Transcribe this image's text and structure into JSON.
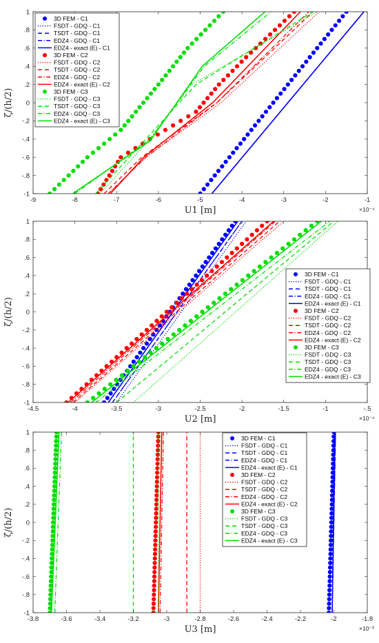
{
  "chart_data": [
    {
      "type": "line",
      "xlabel": "U1 [m]",
      "ylabel": "ζ/(h/2)",
      "x_exponent": "×10⁻⁴",
      "xlim": [
        -9,
        -1
      ],
      "ylim": [
        -1,
        1
      ],
      "xticks": [
        -9,
        -8,
        -7,
        -6,
        -5,
        -4,
        -3,
        -2,
        -1
      ],
      "yticks": [
        -1,
        -0.8,
        -0.6,
        -0.4,
        -0.2,
        0,
        0.2,
        0.4,
        0.6,
        0.8,
        1
      ],
      "legend_position": "top-left",
      "series": [
        {
          "name": "3D FEM - C1",
          "color": "#0000ff",
          "style": "dots",
          "points": [
            [
              -5.0,
              -1
            ],
            [
              -1.5,
              1
            ]
          ]
        },
        {
          "name": "FSDT - GDQ - C1",
          "color": "#0000ff",
          "style": "dotted",
          "points": [
            [
              -4.72,
              -1
            ],
            [
              -1.08,
              1
            ]
          ]
        },
        {
          "name": "TSDT - GDQ - C1",
          "color": "#0000ff",
          "style": "dashed",
          "points": [
            [
              -4.72,
              -1
            ],
            [
              -1.08,
              1
            ]
          ]
        },
        {
          "name": "EDZ4 - GDQ - C1",
          "color": "#0000ff",
          "style": "dashdot",
          "points": [
            [
              -4.72,
              -1
            ],
            [
              -1.08,
              1
            ]
          ]
        },
        {
          "name": "EDZ4 - exact (E) - C1",
          "color": "#0000ff",
          "style": "solid",
          "points": [
            [
              -4.72,
              -1
            ],
            [
              -1.08,
              1
            ]
          ]
        },
        {
          "name": "3D FEM - C2",
          "color": "#ff0000",
          "style": "dots",
          "points": [
            [
              -7.45,
              -1
            ],
            [
              -6.9,
              -0.6
            ],
            [
              -6.2,
              -0.4
            ],
            [
              -5.1,
              -0.1
            ],
            [
              -4.55,
              0.2
            ],
            [
              -3.9,
              0.5
            ],
            [
              -2.75,
              1
            ]
          ]
        },
        {
          "name": "FSDT - GDQ - C2",
          "color": "#ff0000",
          "style": "dotted",
          "points": [
            [
              -7.2,
              -1
            ],
            [
              -6.3,
              -0.6
            ],
            [
              -4.5,
              0
            ],
            [
              -2.15,
              1
            ]
          ]
        },
        {
          "name": "TSDT - GDQ - C2",
          "color": "#ff0000",
          "style": "dashed",
          "points": [
            [
              -7.3,
              -1
            ],
            [
              -6.4,
              -0.6
            ],
            [
              -4.6,
              0
            ],
            [
              -2.3,
              1
            ]
          ]
        },
        {
          "name": "EDZ4 - GDQ - C2",
          "color": "#ff0000",
          "style": "dashdot",
          "points": [
            [
              -7.2,
              -1
            ],
            [
              -6.3,
              -0.6
            ],
            [
              -4.6,
              0
            ],
            [
              -2.4,
              1
            ]
          ]
        },
        {
          "name": "EDZ4 - exact (E) - C2",
          "color": "#ff0000",
          "style": "solid",
          "points": [
            [
              -7.15,
              -1
            ],
            [
              -6.35,
              -0.6
            ],
            [
              -4.7,
              0
            ],
            [
              -2.6,
              1
            ]
          ]
        },
        {
          "name": "3D FEM - C3",
          "color": "#00dd00",
          "style": "dots",
          "points": [
            [
              -8.6,
              -1
            ],
            [
              -7.7,
              -0.6
            ],
            [
              -6.9,
              -0.3
            ],
            [
              -6.0,
              0.2
            ],
            [
              -5.3,
              0.6
            ],
            [
              -4.45,
              1
            ]
          ]
        },
        {
          "name": "FSDT - GDQ - C3",
          "color": "#00dd00",
          "style": "dotted",
          "points": [
            [
              -7.4,
              -1
            ],
            [
              -6.3,
              -0.45
            ],
            [
              -5.2,
              0.2
            ],
            [
              -2.2,
              1
            ]
          ]
        },
        {
          "name": "TSDT - GDQ - C3",
          "color": "#00dd00",
          "style": "dashed",
          "points": [
            [
              -7.5,
              -1
            ],
            [
              -6.3,
              -0.4
            ],
            [
              -5.1,
              0.2
            ],
            [
              -2.3,
              1
            ]
          ]
        },
        {
          "name": "EDZ4 - GDQ - C3",
          "color": "#00dd00",
          "style": "dashdot",
          "points": [
            [
              -8.0,
              -1
            ],
            [
              -6.2,
              -0.4
            ],
            [
              -4.9,
              0.4
            ],
            [
              -3.3,
              1
            ]
          ]
        },
        {
          "name": "EDZ4 - exact (E) - C3",
          "color": "#00dd00",
          "style": "solid",
          "points": [
            [
              -8.05,
              -1
            ],
            [
              -6.2,
              -0.42
            ],
            [
              -4.95,
              0.4
            ],
            [
              -3.45,
              1
            ]
          ]
        }
      ]
    },
    {
      "type": "line",
      "xlabel": "U2 [m]",
      "ylabel": "ζ/(h/2)",
      "x_exponent": "×10⁻⁴",
      "xlim": [
        -4.5,
        -0.5
      ],
      "ylim": [
        -1,
        1
      ],
      "xticks": [
        -4.5,
        -4,
        -3.5,
        -3,
        -2.5,
        -2,
        -1.5,
        -1,
        -0.5
      ],
      "yticks": [
        -1,
        -0.8,
        -0.6,
        -0.4,
        -0.2,
        0,
        0.2,
        0.4,
        0.6,
        0.8,
        1
      ],
      "legend_position": "right",
      "series": [
        {
          "name": "3D FEM - C1",
          "color": "#0000ff",
          "style": "dots",
          "points": [
            [
              -3.65,
              -1
            ],
            [
              -2.08,
              1
            ]
          ]
        },
        {
          "name": "FSDT - GDQ - C1",
          "color": "#0000ff",
          "style": "dotted",
          "points": [
            [
              -3.5,
              -1
            ],
            [
              -1.95,
              1
            ]
          ]
        },
        {
          "name": "TSDT - GDQ - C1",
          "color": "#0000ff",
          "style": "dashed",
          "points": [
            [
              -3.55,
              -1
            ],
            [
              -2.0,
              1
            ]
          ]
        },
        {
          "name": "EDZ4 - GDQ - C1",
          "color": "#0000ff",
          "style": "dashdot",
          "points": [
            [
              -3.55,
              -1
            ],
            [
              -2.0,
              1
            ]
          ]
        },
        {
          "name": "EDZ4 - exact (E) - C1",
          "color": "#0000ff",
          "style": "solid",
          "points": [
            [
              -3.6,
              -1
            ],
            [
              -2.05,
              1
            ]
          ]
        },
        {
          "name": "3D FEM - C2",
          "color": "#ff0000",
          "style": "dots",
          "points": [
            [
              -4.1,
              -1
            ],
            [
              -1.7,
              1
            ]
          ]
        },
        {
          "name": "FSDT - GDQ - C2",
          "color": "#ff0000",
          "style": "dotted",
          "points": [
            [
              -4.0,
              -1
            ],
            [
              -1.5,
              1
            ]
          ]
        },
        {
          "name": "TSDT - GDQ - C2",
          "color": "#ff0000",
          "style": "dashed",
          "points": [
            [
              -4.02,
              -1
            ],
            [
              -1.55,
              1
            ]
          ]
        },
        {
          "name": "EDZ4 - GDQ - C2",
          "color": "#ff0000",
          "style": "dashdot",
          "points": [
            [
              -4.05,
              -1
            ],
            [
              -1.6,
              1
            ]
          ]
        },
        {
          "name": "EDZ4 - exact (E) - C2",
          "color": "#ff0000",
          "style": "solid",
          "points": [
            [
              -4.08,
              -1
            ],
            [
              -1.62,
              1
            ]
          ]
        },
        {
          "name": "3D FEM - C3",
          "color": "#00dd00",
          "style": "dots",
          "points": [
            [
              -3.85,
              -1
            ],
            [
              -1.1,
              1
            ]
          ]
        },
        {
          "name": "FSDT - GDQ - C3",
          "color": "#00dd00",
          "style": "dotted",
          "points": [
            [
              -3.3,
              -1
            ],
            [
              -0.85,
              1
            ]
          ]
        },
        {
          "name": "TSDT - GDQ - C3",
          "color": "#00dd00",
          "style": "dashed",
          "points": [
            [
              -3.5,
              -1
            ],
            [
              -0.9,
              1
            ]
          ]
        },
        {
          "name": "EDZ4 - GDQ - C3",
          "color": "#00dd00",
          "style": "dashdot",
          "points": [
            [
              -3.75,
              -1
            ],
            [
              -0.95,
              1
            ]
          ]
        },
        {
          "name": "EDZ4 - exact (E) - C3",
          "color": "#00dd00",
          "style": "solid",
          "points": [
            [
              -3.8,
              -1
            ],
            [
              -1.05,
              1
            ]
          ]
        }
      ]
    },
    {
      "type": "line",
      "xlabel": "U3 [m]",
      "ylabel": "ζ/(h/2)",
      "x_exponent": "×10⁻³",
      "xlim": [
        -3.8,
        -1.8
      ],
      "ylim": [
        -1,
        1
      ],
      "xticks": [
        -3.8,
        -3.6,
        -3.4,
        -3.2,
        -3,
        -2.8,
        -2.6,
        -2.4,
        -2.2,
        -2,
        -1.8
      ],
      "yticks": [
        -1,
        -0.8,
        -0.6,
        -0.4,
        -0.2,
        0,
        0.2,
        0.4,
        0.6,
        0.8,
        1
      ],
      "legend_position": "top-right",
      "series": [
        {
          "name": "3D FEM - C1",
          "color": "#0000ff",
          "style": "dots",
          "points": [
            [
              -2.03,
              -1
            ],
            [
              -2.0,
              1
            ]
          ]
        },
        {
          "name": "FSDT - GDQ - C1",
          "color": "#0000ff",
          "style": "dotted",
          "points": [
            [
              -2.01,
              -1
            ],
            [
              -1.99,
              1
            ]
          ]
        },
        {
          "name": "TSDT - GDQ - C1",
          "color": "#0000ff",
          "style": "dashed",
          "points": [
            [
              -2.01,
              -1
            ],
            [
              -1.99,
              1
            ]
          ]
        },
        {
          "name": "EDZ4 - GDQ - C1",
          "color": "#0000ff",
          "style": "dashdot",
          "points": [
            [
              -2.01,
              -1
            ],
            [
              -1.99,
              1
            ]
          ]
        },
        {
          "name": "EDZ4 - exact (E) - C1",
          "color": "#0000ff",
          "style": "solid",
          "points": [
            [
              -2.01,
              -1
            ],
            [
              -1.995,
              1
            ]
          ]
        },
        {
          "name": "3D FEM - C2",
          "color": "#ff0000",
          "style": "dots",
          "points": [
            [
              -3.08,
              -1
            ],
            [
              -3.05,
              1
            ]
          ]
        },
        {
          "name": "FSDT - GDQ - C2",
          "color": "#ff0000",
          "style": "dotted",
          "points": [
            [
              -2.8,
              -1
            ],
            [
              -2.8,
              1
            ]
          ]
        },
        {
          "name": "TSDT - GDQ - C2",
          "color": "#ff0000",
          "style": "dashed",
          "points": [
            [
              -2.88,
              -1
            ],
            [
              -2.88,
              1
            ]
          ]
        },
        {
          "name": "EDZ4 - GDQ - C2",
          "color": "#ff0000",
          "style": "dashdot",
          "points": [
            [
              -3.04,
              -1
            ],
            [
              -3.02,
              1
            ]
          ]
        },
        {
          "name": "EDZ4 - exact (E) - C2",
          "color": "#ff0000",
          "style": "solid",
          "points": [
            [
              -3.05,
              -1
            ],
            [
              -3.03,
              1
            ]
          ]
        },
        {
          "name": "3D FEM - C3",
          "color": "#00dd00",
          "style": "dots",
          "points": [
            [
              -3.7,
              -1
            ],
            [
              -3.66,
              1
            ]
          ]
        },
        {
          "name": "FSDT - GDQ - C3",
          "color": "#00dd00",
          "style": "dotted",
          "points": [
            [
              -3.05,
              -1
            ],
            [
              -3.05,
              1
            ]
          ]
        },
        {
          "name": "TSDT - GDQ - C3",
          "color": "#00dd00",
          "style": "dashed",
          "points": [
            [
              -3.2,
              -1
            ],
            [
              -3.2,
              1
            ]
          ]
        },
        {
          "name": "EDZ4 - GDQ - C3",
          "color": "#00dd00",
          "style": "dashdot",
          "points": [
            [
              -3.67,
              -1
            ],
            [
              -3.63,
              1
            ]
          ]
        },
        {
          "name": "EDZ4 - exact (E) - C3",
          "color": "#00dd00",
          "style": "solid",
          "points": [
            [
              -3.69,
              -1
            ],
            [
              -3.645,
              1
            ]
          ]
        }
      ]
    }
  ]
}
